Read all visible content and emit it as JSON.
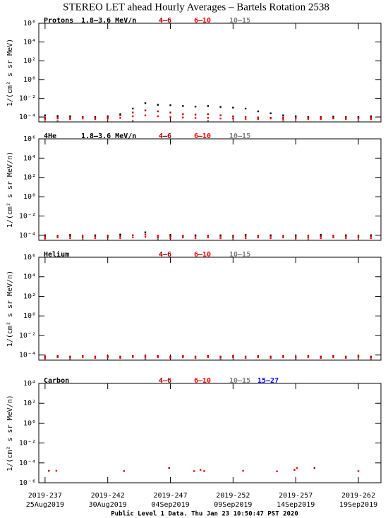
{
  "title": "STEREO LET ahead Hourly Averages – Bartels Rotation 2538",
  "footer": "Public Level 1 Data. Thu Jan 23 10:50:47 PST 2020",
  "chart_data": [
    {
      "type": "scatter",
      "title": "Protons",
      "ylabel": "1/(cm² s sr MeV)",
      "log_y": true,
      "ylim": [
        3e-05,
        1000000
      ],
      "yticks": [
        {
          "value": 1000000,
          "label": "10⁶"
        },
        {
          "value": 10000,
          "label": "10⁴"
        },
        {
          "value": 100,
          "label": "10²"
        },
        {
          "value": 1,
          "label": "10⁰"
        },
        {
          "value": 0.01,
          "label": "10⁻²"
        },
        {
          "value": 0.0001,
          "label": "10⁻⁴"
        }
      ],
      "series": [
        {
          "name": "1.8–3.6 MeV/n",
          "color": "#000000",
          "x": [
            237,
            238,
            239,
            240,
            241,
            242,
            243,
            244,
            245,
            246,
            247,
            248,
            249,
            250,
            251,
            252,
            253,
            254,
            255,
            256,
            257,
            258,
            259,
            260,
            261,
            262,
            263
          ],
          "values": [
            0.00015,
            0.00013,
            0.00012,
            0.0001,
            0.0001,
            0.00012,
            0.0002,
            0.0008,
            0.003,
            0.002,
            0.0018,
            0.0015,
            0.0013,
            0.0015,
            0.0012,
            0.001,
            0.0008,
            0.0004,
            0.00025,
            0.00015,
            0.00012,
            0.0001,
            0.0001,
            0.00011,
            0.0001,
            0.0001,
            0.00012
          ]
        },
        {
          "name": "4–6",
          "color": "#b00000",
          "x": [
            237,
            238,
            239,
            240,
            241,
            242,
            243,
            244,
            245,
            246,
            247,
            248,
            249,
            250,
            251,
            252,
            253,
            254,
            255,
            256,
            257,
            258,
            259,
            260,
            261,
            262,
            263
          ],
          "values": [
            8e-05,
            9e-05,
            8e-05,
            9e-05,
            8e-05,
            0.0001,
            0.00015,
            0.0003,
            0.0005,
            0.0004,
            0.0003,
            0.0002,
            0.00018,
            0.0002,
            0.00015,
            0.00012,
            0.0001,
            9e-05,
            8e-05,
            9e-05,
            8e-05,
            8e-05,
            9e-05,
            8e-05,
            9e-05,
            8e-05,
            9e-05
          ]
        },
        {
          "name": "6–10",
          "color": "#ff0000",
          "x": [
            237,
            238,
            239,
            240,
            241,
            242,
            243,
            244,
            245,
            246,
            247,
            248,
            249,
            250,
            251,
            252,
            253,
            254,
            255,
            256,
            257,
            258,
            259,
            260,
            261,
            262,
            263
          ],
          "values": [
            6e-05,
            7e-05,
            6e-05,
            7e-05,
            6e-05,
            7e-05,
            8e-05,
            0.00012,
            0.00015,
            0.00012,
            0.0001,
            9e-05,
            8e-05,
            8e-05,
            7e-05,
            7e-05,
            6e-05,
            6e-05,
            7e-05,
            6e-05,
            7e-05,
            6e-05,
            6e-05,
            7e-05,
            6e-05,
            7e-05,
            6e-05
          ]
        },
        {
          "name": "10–15",
          "color": "#808080",
          "x": [
            238,
            244,
            250,
            256,
            262
          ],
          "values": [
            4e-05,
            4e-05,
            4e-05,
            4e-05,
            4e-05
          ]
        }
      ]
    },
    {
      "type": "scatter",
      "title": "4He",
      "ylabel": "1/(cm² s sr MeV/n)",
      "log_y": true,
      "ylim": [
        3e-05,
        1000000
      ],
      "yticks": [
        {
          "value": 1000000,
          "label": "10⁶"
        },
        {
          "value": 10000,
          "label": "10⁴"
        },
        {
          "value": 100,
          "label": "10²"
        },
        {
          "value": 1,
          "label": "10⁰"
        },
        {
          "value": 0.01,
          "label": "10⁻²"
        },
        {
          "value": 0.0001,
          "label": "10⁻⁴"
        }
      ],
      "series": [
        {
          "name": "1.8–3.6 MeV/n",
          "color": "#000000",
          "x": [
            237,
            239,
            241,
            243,
            245,
            247,
            249,
            251,
            253,
            255,
            257,
            259,
            261,
            263
          ],
          "values": [
            0.0001,
            0.00011,
            0.0001,
            0.00012,
            0.0002,
            0.00011,
            0.0001,
            0.0001,
            0.00011,
            0.0001,
            0.0001,
            0.00011,
            0.0001,
            0.0001
          ]
        },
        {
          "name": "4–6",
          "color": "#b00000",
          "x": [
            237,
            238,
            239,
            240,
            241,
            242,
            243,
            244,
            245,
            246,
            247,
            248,
            249,
            250,
            251,
            252,
            253,
            254,
            255,
            256,
            257,
            258,
            259,
            260,
            261,
            262,
            263
          ],
          "values": [
            8e-05,
            9e-05,
            8e-05,
            9e-05,
            8e-05,
            9e-05,
            8e-05,
            0.0001,
            0.00012,
            9e-05,
            8e-05,
            9e-05,
            8e-05,
            9e-05,
            8e-05,
            9e-05,
            8e-05,
            9e-05,
            8e-05,
            9e-05,
            8e-05,
            9e-05,
            8e-05,
            9e-05,
            8e-05,
            9e-05,
            8e-05
          ]
        },
        {
          "name": "6–10",
          "color": "#ff0000",
          "x": [
            237,
            238,
            239,
            240,
            241,
            242,
            243,
            244,
            245,
            246,
            247,
            248,
            249,
            250,
            251,
            252,
            253,
            254,
            255,
            256,
            257,
            258,
            259,
            260,
            261,
            262,
            263
          ],
          "values": [
            5e-05,
            6e-05,
            5e-05,
            6e-05,
            5e-05,
            6e-05,
            5e-05,
            6e-05,
            7e-05,
            6e-05,
            5e-05,
            6e-05,
            5e-05,
            6e-05,
            5e-05,
            6e-05,
            5e-05,
            6e-05,
            5e-05,
            6e-05,
            5e-05,
            6e-05,
            5e-05,
            6e-05,
            5e-05,
            6e-05,
            5e-05
          ]
        },
        {
          "name": "10–15",
          "color": "#808080",
          "x": [
            240,
            246,
            252,
            258
          ],
          "values": [
            4e-05,
            4e-05,
            4e-05,
            4e-05
          ]
        }
      ]
    },
    {
      "type": "scatter",
      "title": "Helium",
      "ylabel": "1/(cm² s sr MeV/n)",
      "log_y": true,
      "ylim": [
        3e-05,
        1000000
      ],
      "yticks": [
        {
          "value": 1000000,
          "label": "10⁶"
        },
        {
          "value": 10000,
          "label": "10⁴"
        },
        {
          "value": 100,
          "label": "10²"
        },
        {
          "value": 1,
          "label": "10⁰"
        },
        {
          "value": 0.01,
          "label": "10⁻²"
        },
        {
          "value": 0.0001,
          "label": "10⁻⁴"
        }
      ],
      "series": [
        {
          "name": "4–6",
          "color": "#b00000",
          "x": [
            237,
            238,
            239,
            240,
            241,
            242,
            243,
            244,
            245,
            246,
            247,
            248,
            249,
            250,
            251,
            252,
            253,
            254,
            255,
            256,
            257,
            258,
            259,
            260,
            261,
            262,
            263
          ],
          "values": [
            7e-05,
            8e-05,
            7e-05,
            8e-05,
            7e-05,
            8e-05,
            7e-05,
            8e-05,
            9e-05,
            8e-05,
            7e-05,
            8e-05,
            7e-05,
            8e-05,
            7e-05,
            8e-05,
            7e-05,
            8e-05,
            7e-05,
            8e-05,
            7e-05,
            8e-05,
            7e-05,
            8e-05,
            7e-05,
            8e-05,
            7e-05
          ]
        },
        {
          "name": "6–10",
          "color": "#ff0000",
          "x": [
            237,
            238,
            239,
            240,
            241,
            242,
            243,
            244,
            245,
            246,
            247,
            248,
            249,
            250,
            251,
            252,
            253,
            254,
            255,
            256,
            257,
            258,
            259,
            260,
            261,
            262,
            263
          ],
          "values": [
            5e-05,
            6e-05,
            5e-05,
            6e-05,
            5e-05,
            6e-05,
            5e-05,
            6e-05,
            6e-05,
            6e-05,
            5e-05,
            6e-05,
            5e-05,
            6e-05,
            5e-05,
            6e-05,
            5e-05,
            6e-05,
            5e-05,
            6e-05,
            5e-05,
            6e-05,
            5e-05,
            6e-05,
            5e-05,
            6e-05,
            5e-05
          ]
        },
        {
          "name": "10–15",
          "color": "#808080",
          "x": [
            239,
            245,
            251,
            257,
            263
          ],
          "values": [
            4e-05,
            4e-05,
            4e-05,
            4e-05,
            4e-05
          ]
        }
      ]
    },
    {
      "type": "scatter",
      "title": "Carbon",
      "ylabel": "1/(cm² s sr MeV/n)",
      "log_y": true,
      "ylim": [
        1e-06,
        10000
      ],
      "yticks": [
        {
          "value": 10000,
          "label": "10⁴"
        },
        {
          "value": 100,
          "label": "10²"
        },
        {
          "value": 1,
          "label": "10⁰"
        },
        {
          "value": 0.01,
          "label": "10⁻²"
        },
        {
          "value": 0.0001,
          "label": "10⁻⁴"
        },
        {
          "value": 1e-06,
          "label": "10⁻⁶"
        }
      ],
      "xlim": [
        236.5,
        263.8
      ],
      "xticks": [
        {
          "value": 237,
          "label": "2019-237"
        },
        {
          "value": 242,
          "label": "2019-242"
        },
        {
          "value": 247,
          "label": "2019-247"
        },
        {
          "value": 252,
          "label": "2019-252"
        },
        {
          "value": 257,
          "label": "2019-257"
        },
        {
          "value": 262,
          "label": "2019-262"
        }
      ],
      "xtick_dates": [
        "25Aug2019",
        "30Aug2019",
        "04Sep2019",
        "09Sep2019",
        "14Sep2019",
        "19Sep2019"
      ],
      "series": [
        {
          "name": "4–6",
          "color": "#b00000",
          "x": [
            237.3,
            246.9,
            256.9,
            258.5
          ],
          "values": [
            1.6e-05,
            3e-05,
            2e-05,
            3e-05
          ]
        },
        {
          "name": "6–10",
          "color": "#ff0000",
          "x": [
            237.9,
            243.3,
            248.9,
            249.4,
            249.7,
            252.8,
            255.5,
            257.1,
            262.0
          ],
          "values": [
            1.6e-05,
            1.5e-05,
            1.5e-05,
            2e-05,
            1.5e-05,
            1.6e-05,
            1.4e-05,
            3e-05,
            1.5e-05
          ]
        },
        {
          "name": "10–15",
          "color": "#808080",
          "x": [],
          "values": []
        },
        {
          "name": "15–27",
          "color": "#0000ff",
          "x": [],
          "values": []
        }
      ]
    }
  ]
}
